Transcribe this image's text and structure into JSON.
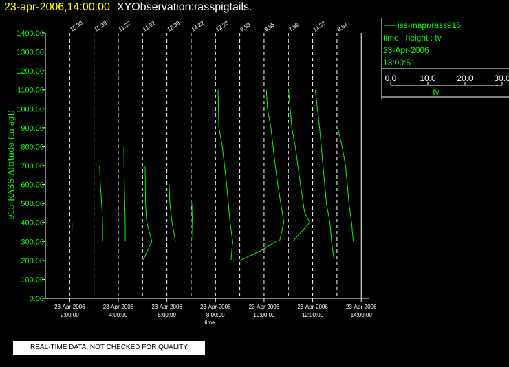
{
  "header": {
    "date": "23-apr-2006,14:00:00",
    "title": "XYObservation:rasspigtails."
  },
  "legend": {
    "series": "iss-mapr/rass915",
    "line2": "time : height : tv",
    "line3": "23-Apr-2006",
    "line4": "13:00:51",
    "scale_ticks": [
      "0.0",
      "10.0",
      "20.0",
      "30.0"
    ],
    "scale_label": "tv"
  },
  "footer": {
    "text": "REAL-TIME DATA, NOT CHECKED FOR QUALITY"
  },
  "colors": {
    "trace": "#00ff00",
    "axis_text": "#00ff00",
    "header_date": "#ffff00"
  },
  "chart_data": {
    "type": "line",
    "title": "XYObservation:rasspigtails.",
    "xlabel": "time",
    "ylabel": "915 RASS Altitude (m agl)",
    "ylim": [
      0,
      1400
    ],
    "yticks": [
      "0.00",
      "100.00",
      "200.00",
      "300.00",
      "400.00",
      "500.00",
      "600.00",
      "700.00",
      "800.00",
      "900.00",
      "1000.00",
      "1100.00",
      "1200.00",
      "1300.00",
      "1400.00"
    ],
    "xlim": [
      "01:00",
      "14:20"
    ],
    "xticks": [
      {
        "value": "02:00",
        "date": "23-Apr-2006",
        "time": "2:00:00"
      },
      {
        "value": "04:00",
        "date": "23-Apr-2006",
        "time": "4:00:00"
      },
      {
        "value": "06:00",
        "date": "23-Apr-2006",
        "time": "6:00:00"
      },
      {
        "value": "08:00",
        "date": "23-Apr-2006",
        "time": "8:00:00"
      },
      {
        "value": "10:00",
        "date": "23-Apr-2006",
        "time": "10:00:00"
      },
      {
        "value": "12:00",
        "date": "23-Apr-2006",
        "time": "12:00:00"
      },
      {
        "value": "14:00",
        "date": "23-Apr-2006",
        "time": "14:00:00"
      }
    ],
    "profile_times": [
      "02:00",
      "03:00",
      "04:00",
      "05:00",
      "06:00",
      "07:00",
      "08:00",
      "09:00",
      "10:00",
      "11:00",
      "12:00",
      "13:00"
    ],
    "top_labels": [
      "15.90",
      "15.39",
      "11.37",
      "11.92",
      "12.99",
      "14.22",
      "12.23",
      "3.59",
      "9.65",
      "7.92",
      "11.38",
      "8.64"
    ],
    "tv_scale": {
      "min": 0,
      "max": 30,
      "ticks": [
        0,
        10,
        20,
        30
      ]
    },
    "series": [
      {
        "name": "iss-mapr/rass915",
        "profiles": [
          {
            "time": "02:00",
            "points": [
              [
                1.3,
                350
              ],
              [
                1.4,
                400
              ]
            ]
          },
          {
            "time": "03:00",
            "points": [
              [
                3.25,
                700
              ],
              [
                3.7,
                600
              ],
              [
                4.45,
                500
              ],
              [
                5.0,
                400
              ],
              [
                5.0,
                300
              ]
            ]
          },
          {
            "time": "04:00",
            "points": [
              [
                3.2,
                800
              ],
              [
                3.5,
                600
              ],
              [
                4.0,
                400
              ],
              [
                4.0,
                300
              ]
            ]
          },
          {
            "time": "05:00",
            "points": [
              [
                1.5,
                700
              ],
              [
                1.6,
                600
              ],
              [
                1.7,
                500
              ],
              [
                2.5,
                400
              ],
              [
                5.4,
                300
              ],
              [
                0.2,
                200
              ]
            ]
          },
          {
            "time": "06:00",
            "points": [
              [
                1.3,
                600
              ],
              [
                1.7,
                500
              ],
              [
                3.0,
                400
              ],
              [
                5.0,
                300
              ]
            ]
          },
          {
            "time": "07:00",
            "points": [
              [
                0.4,
                500
              ],
              [
                0.7,
                400
              ],
              [
                1.0,
                300
              ]
            ]
          },
          {
            "time": "08:00",
            "points": [
              [
                1.5,
                1100
              ],
              [
                2.0,
                900
              ],
              [
                4.0,
                800
              ],
              [
                6.5,
                600
              ],
              [
                8.5,
                400
              ],
              [
                10.0,
                300
              ],
              [
                9.0,
                200
              ]
            ]
          },
          {
            "time": "09:00",
            "points": [
              [
                0.1,
                200
              ],
              [
                12.0,
                250
              ],
              [
                21.0,
                300
              ]
            ]
          },
          {
            "time": "10:00",
            "points": [
              [
                1.3,
                1100
              ],
              [
                2.0,
                1000
              ],
              [
                4.0,
                900
              ],
              [
                6.5,
                700
              ],
              [
                8.0,
                600
              ],
              [
                11.5,
                400
              ],
              [
                9.0,
                300
              ]
            ]
          },
          {
            "time": "11:00",
            "points": [
              [
                0.1,
                1100
              ],
              [
                2.0,
                900
              ],
              [
                4.0,
                800
              ],
              [
                7.0,
                600
              ],
              [
                9.5,
                450
              ],
              [
                12.5,
                400
              ],
              [
                2.5,
                300
              ]
            ]
          },
          {
            "time": "12:00",
            "points": [
              [
                1.5,
                1100
              ],
              [
                4.0,
                900
              ],
              [
                6.0,
                700
              ],
              [
                8.0,
                500
              ],
              [
                10.0,
                400
              ],
              [
                11.0,
                300
              ],
              [
                12.5,
                200
              ]
            ]
          },
          {
            "time": "13:00",
            "points": [
              [
                0.5,
                900
              ],
              [
                3.0,
                800
              ],
              [
                5.0,
                700
              ],
              [
                7.0,
                500
              ],
              [
                8.5,
                400
              ],
              [
                9.5,
                300
              ]
            ]
          }
        ]
      }
    ]
  }
}
